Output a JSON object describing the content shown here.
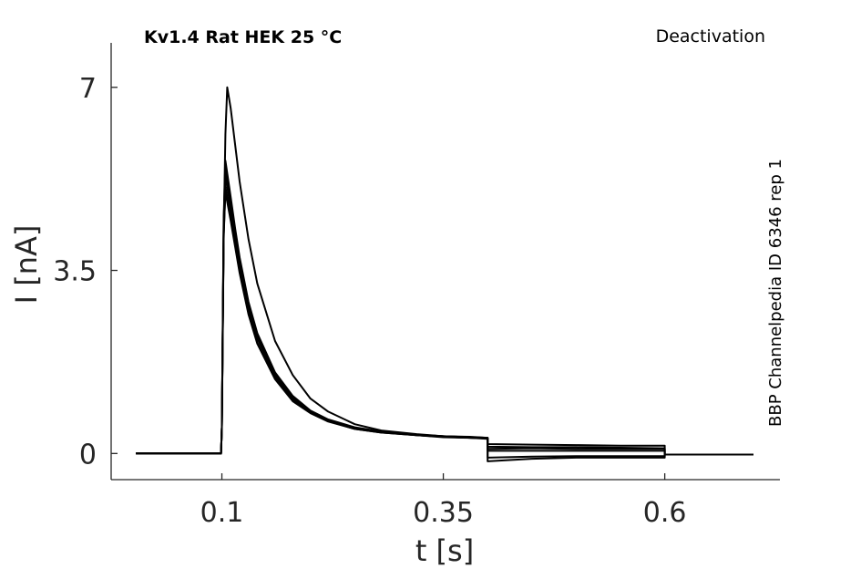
{
  "chart_data": {
    "type": "line",
    "title": "Kv1.4  Rat  HEK  25 °C",
    "protocol_label": "Deactivation",
    "side_label": "BBP Channelpedia ID 6346 rep 1",
    "xlabel": "t [s]",
    "ylabel": "I [nA]",
    "xlim": [
      -0.025,
      0.73
    ],
    "ylim": [
      -0.5,
      7.85
    ],
    "xticks": [
      0.1,
      0.35,
      0.6
    ],
    "xtick_labels": [
      "0.1",
      "0.35",
      "0.6"
    ],
    "yticks": [
      0,
      3.5,
      7
    ],
    "ytick_labels": [
      "0",
      "3.5",
      "7"
    ],
    "grid": false,
    "series": [
      {
        "x": [
          0.003,
          0.05,
          0.099,
          0.1,
          0.102,
          0.104,
          0.106,
          0.11,
          0.115,
          0.12,
          0.13,
          0.14,
          0.16,
          0.18,
          0.2,
          0.22,
          0.25,
          0.28,
          0.32,
          0.35,
          0.38,
          0.4,
          0.4,
          0.45,
          0.5,
          0.55,
          0.6,
          0.6,
          0.65,
          0.7
        ],
        "y": [
          0,
          0,
          0,
          0.5,
          4.2,
          6.1,
          7.0,
          6.6,
          5.9,
          5.2,
          4.1,
          3.25,
          2.15,
          1.5,
          1.05,
          0.8,
          0.56,
          0.44,
          0.37,
          0.33,
          0.32,
          0.3,
          0.13,
          0.12,
          0.12,
          0.11,
          0.1,
          -0.02,
          -0.02,
          -0.02
        ]
      },
      {
        "x": [
          0.003,
          0.05,
          0.099,
          0.1,
          0.102,
          0.104,
          0.11,
          0.115,
          0.12,
          0.13,
          0.14,
          0.16,
          0.18,
          0.2,
          0.22,
          0.25,
          0.28,
          0.32,
          0.35,
          0.38,
          0.4,
          0.4,
          0.45,
          0.5,
          0.55,
          0.6,
          0.6,
          0.65,
          0.7
        ],
        "y": [
          0,
          0,
          0,
          0.5,
          4.5,
          5.6,
          4.9,
          4.3,
          3.75,
          2.9,
          2.3,
          1.55,
          1.1,
          0.82,
          0.65,
          0.5,
          0.42,
          0.36,
          0.33,
          0.31,
          0.3,
          0.05,
          0.05,
          0.05,
          0.05,
          0.05,
          -0.02,
          -0.02,
          -0.02
        ]
      },
      {
        "x": [
          0.003,
          0.05,
          0.099,
          0.1,
          0.102,
          0.104,
          0.11,
          0.115,
          0.12,
          0.13,
          0.14,
          0.16,
          0.18,
          0.2,
          0.22,
          0.25,
          0.28,
          0.32,
          0.35,
          0.38,
          0.4,
          0.4,
          0.45,
          0.5,
          0.55,
          0.6,
          0.6,
          0.65,
          0.7
        ],
        "y": [
          0,
          0,
          0,
          0.5,
          4.3,
          5.3,
          4.7,
          4.15,
          3.6,
          2.8,
          2.2,
          1.5,
          1.05,
          0.8,
          0.63,
          0.48,
          0.41,
          0.35,
          0.32,
          0.3,
          0.29,
          -0.08,
          -0.06,
          -0.05,
          -0.05,
          -0.05,
          -0.02,
          -0.02,
          -0.02
        ]
      },
      {
        "x": [
          0.003,
          0.05,
          0.099,
          0.1,
          0.102,
          0.104,
          0.11,
          0.115,
          0.12,
          0.13,
          0.14,
          0.16,
          0.18,
          0.2,
          0.22,
          0.25,
          0.28,
          0.32,
          0.35,
          0.38,
          0.4,
          0.4,
          0.45,
          0.5,
          0.55,
          0.6,
          0.6,
          0.65,
          0.7
        ],
        "y": [
          0,
          0,
          0,
          0.5,
          4.1,
          5.1,
          4.55,
          4.0,
          3.5,
          2.7,
          2.12,
          1.45,
          1.02,
          0.78,
          0.62,
          0.47,
          0.4,
          0.35,
          0.32,
          0.3,
          0.29,
          0.18,
          0.17,
          0.16,
          0.15,
          0.15,
          -0.02,
          -0.02,
          -0.02
        ]
      },
      {
        "x": [
          0.003,
          0.05,
          0.099,
          0.1,
          0.102,
          0.104,
          0.11,
          0.115,
          0.12,
          0.13,
          0.14,
          0.16,
          0.18,
          0.2,
          0.22,
          0.25,
          0.28,
          0.32,
          0.35,
          0.38,
          0.4,
          0.4,
          0.45,
          0.5,
          0.55,
          0.6,
          0.6,
          0.65,
          0.7
        ],
        "y": [
          0,
          0,
          0,
          0.5,
          4.2,
          5.0,
          4.45,
          3.95,
          3.45,
          2.66,
          2.1,
          1.42,
          1.0,
          0.77,
          0.61,
          0.47,
          0.4,
          0.35,
          0.31,
          0.3,
          0.28,
          -0.15,
          -0.1,
          -0.08,
          -0.08,
          -0.08,
          -0.02,
          -0.02,
          -0.02
        ]
      },
      {
        "x": [
          0.003,
          0.05,
          0.099,
          0.1,
          0.102,
          0.104,
          0.11,
          0.115,
          0.12,
          0.13,
          0.14,
          0.16,
          0.18,
          0.2,
          0.22,
          0.25,
          0.28,
          0.32,
          0.35,
          0.38,
          0.4,
          0.4,
          0.45,
          0.5,
          0.55,
          0.6,
          0.6,
          0.65,
          0.7
        ],
        "y": [
          0,
          0,
          0,
          0.5,
          4.4,
          5.45,
          4.85,
          4.25,
          3.7,
          2.85,
          2.25,
          1.52,
          1.07,
          0.81,
          0.64,
          0.49,
          0.41,
          0.36,
          0.33,
          0.31,
          0.3,
          0.09,
          0.1,
          0.09,
          0.09,
          0.09,
          -0.02,
          -0.02,
          -0.02
        ]
      }
    ]
  }
}
